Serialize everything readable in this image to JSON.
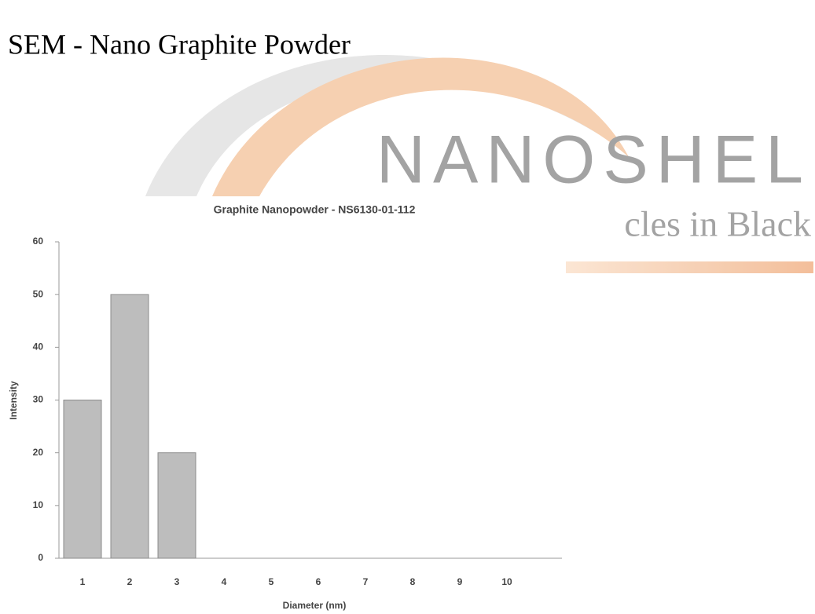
{
  "page": {
    "heading": "SEM - Nano Graphite Powder"
  },
  "watermark": {
    "brand": "NANOSHEL",
    "tagline": "cles in Black"
  },
  "chart_data": {
    "type": "bar",
    "title": "Graphite Nanopowder - NS6130-01-112",
    "x_label": "Diameter (nm)",
    "y_label": "Intensity",
    "categories": [
      "1",
      "2",
      "3",
      "4",
      "5",
      "6",
      "7",
      "8",
      "9",
      "10"
    ],
    "values": [
      30,
      50,
      20,
      0,
      0,
      0,
      0,
      0,
      0,
      0
    ],
    "color": "#bdbdbd",
    "ylim": [
      0,
      60
    ],
    "yticks": [
      0,
      10,
      20,
      30,
      40,
      50,
      60
    ],
    "grid": false
  }
}
